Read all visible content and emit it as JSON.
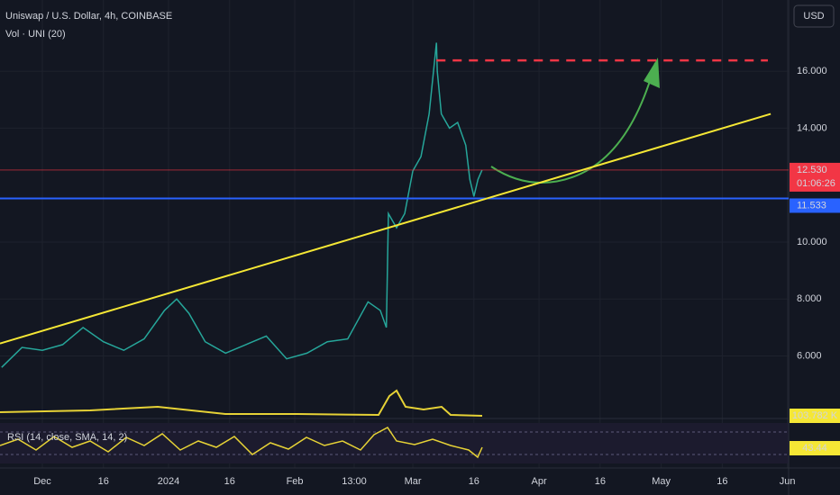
{
  "chart_data": {
    "type": "line",
    "title": "Uniswap / U.S. Dollar, 4h, COINBASE",
    "subtitle": "Vol · UNI (20)",
    "currency": "USD",
    "indicator": "RSI (14, close, SMA, 14, 2)",
    "color": "#26a69a",
    "x": [
      -10,
      -5,
      0,
      5,
      10,
      15,
      20,
      25,
      30,
      33,
      36,
      40,
      45,
      50,
      55,
      60,
      65,
      70,
      75,
      80,
      83,
      84.5,
      85,
      87,
      89,
      91,
      93,
      95,
      96.8,
      97,
      98,
      100,
      102,
      104,
      105,
      106,
      107,
      108
    ],
    "values": [
      5.6,
      6.3,
      6.2,
      6.4,
      7.0,
      6.5,
      6.2,
      6.6,
      7.6,
      8.0,
      7.5,
      6.5,
      6.1,
      6.4,
      6.7,
      5.9,
      6.1,
      6.5,
      6.6,
      7.9,
      7.6,
      7.0,
      11.0,
      10.5,
      11.0,
      12.5,
      13.0,
      14.5,
      17.0,
      16.0,
      14.5,
      14.0,
      14.2,
      13.4,
      12.2,
      11.6,
      12.2,
      12.53
    ],
    "xlim": [
      -10.4,
      183.3
    ],
    "ylim": [
      3.9,
      18.5
    ],
    "yticks": [
      {
        "value": 6,
        "label": "6.000"
      },
      {
        "value": 8,
        "label": "8.000"
      },
      {
        "value": 10,
        "label": "10.000"
      },
      {
        "value": 14,
        "label": "14.000"
      },
      {
        "value": 16,
        "label": "16.000"
      }
    ],
    "xticks": [
      {
        "value": 0,
        "label": "Dec"
      },
      {
        "value": 15,
        "label": "16"
      },
      {
        "value": 31,
        "label": "2024"
      },
      {
        "value": 46,
        "label": "16"
      },
      {
        "value": 62,
        "label": "Feb"
      },
      {
        "value": 76.6,
        "label": "13:00"
      },
      {
        "value": 91,
        "label": "Mar"
      },
      {
        "value": 106,
        "label": "16"
      },
      {
        "value": 122,
        "label": "Apr"
      },
      {
        "value": 137,
        "label": "16"
      },
      {
        "value": 152,
        "label": "May"
      },
      {
        "value": 167,
        "label": "16"
      },
      {
        "value": 183,
        "label": "Jun"
      }
    ],
    "last_price": {
      "value": 12.53,
      "label": "12.530",
      "countdown": "01:06:26"
    },
    "support": {
      "value": 11.533,
      "label": "11.533"
    },
    "target": {
      "x": [
        96.8,
        178.2
      ],
      "value": 16.38
    },
    "trendline": {
      "x": [
        -10.4,
        178.9
      ],
      "values": [
        6.44,
        14.5
      ]
    },
    "volume_label": "103.782 K",
    "rsi_label": "43.44"
  }
}
